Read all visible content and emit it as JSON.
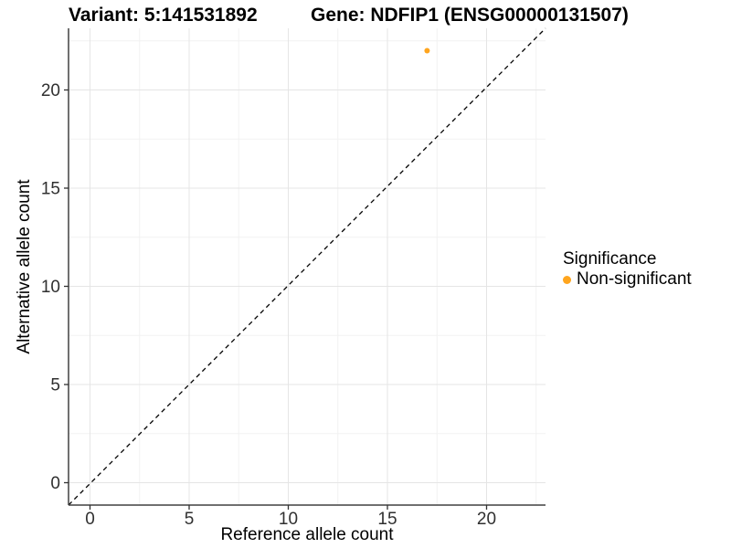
{
  "figure": {
    "title_variant": "Variant: 5:141531892",
    "title_gene": "Gene: NDFIP1 (ENSG00000131507)"
  },
  "legend": {
    "title": "Significance",
    "items": [
      {
        "label": "Non-significant",
        "color": "#FFA51E"
      }
    ]
  },
  "chart_data": {
    "type": "scatter",
    "title": "Variant: 5:141531892  |  Gene: NDFIP1 (ENSG00000131507)",
    "xlabel": "Reference allele count",
    "ylabel": "Alternative allele count",
    "xlim": [
      -1.1,
      23.1
    ],
    "ylim": [
      -1.1,
      23.1
    ],
    "x_ticks": [
      0,
      5,
      10,
      15,
      20
    ],
    "y_ticks": [
      0,
      5,
      10,
      15,
      20
    ],
    "minor_gridlines": [
      2.5,
      7.5,
      12.5,
      17.5,
      22.5
    ],
    "grid": "major+minor",
    "legend_position": "right",
    "legend_title": "Significance",
    "series": [
      {
        "name": "Non-significant",
        "color": "#FFA51E",
        "points": [
          {
            "x": 17,
            "y": 22
          }
        ]
      }
    ],
    "reference_line": {
      "type": "identity_y_equals_x",
      "style": "dashed",
      "color": "#000000"
    },
    "colors": {
      "axis_line": "#404040",
      "tick_text": "#303030",
      "grid_major": "#e5e5e5",
      "grid_minor": "#f2f2f2"
    }
  }
}
